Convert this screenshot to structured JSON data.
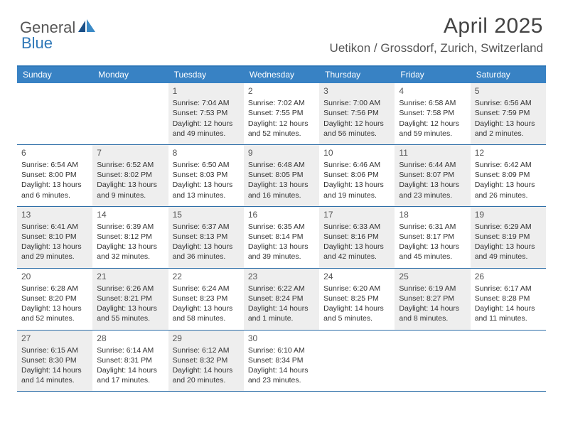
{
  "logo": {
    "text1": "General",
    "text2": "Blue"
  },
  "title": "April 2025",
  "location": "Uetikon / Grossdorf, Zurich, Switzerland",
  "colors": {
    "header_bg": "#3882c4",
    "border": "#2f6fa8",
    "shade": "#eeeeee",
    "logo_gray": "#565656",
    "logo_blue": "#2f78b8"
  },
  "day_headers": [
    "Sunday",
    "Monday",
    "Tuesday",
    "Wednesday",
    "Thursday",
    "Friday",
    "Saturday"
  ],
  "weeks": [
    [
      {
        "num": "",
        "sunrise": "",
        "sunset": "",
        "daylight": "",
        "shaded": false
      },
      {
        "num": "",
        "sunrise": "",
        "sunset": "",
        "daylight": "",
        "shaded": false
      },
      {
        "num": "1",
        "sunrise": "Sunrise: 7:04 AM",
        "sunset": "Sunset: 7:53 PM",
        "daylight": "Daylight: 12 hours and 49 minutes.",
        "shaded": true
      },
      {
        "num": "2",
        "sunrise": "Sunrise: 7:02 AM",
        "sunset": "Sunset: 7:55 PM",
        "daylight": "Daylight: 12 hours and 52 minutes.",
        "shaded": false
      },
      {
        "num": "3",
        "sunrise": "Sunrise: 7:00 AM",
        "sunset": "Sunset: 7:56 PM",
        "daylight": "Daylight: 12 hours and 56 minutes.",
        "shaded": true
      },
      {
        "num": "4",
        "sunrise": "Sunrise: 6:58 AM",
        "sunset": "Sunset: 7:58 PM",
        "daylight": "Daylight: 12 hours and 59 minutes.",
        "shaded": false
      },
      {
        "num": "5",
        "sunrise": "Sunrise: 6:56 AM",
        "sunset": "Sunset: 7:59 PM",
        "daylight": "Daylight: 13 hours and 2 minutes.",
        "shaded": true
      }
    ],
    [
      {
        "num": "6",
        "sunrise": "Sunrise: 6:54 AM",
        "sunset": "Sunset: 8:00 PM",
        "daylight": "Daylight: 13 hours and 6 minutes.",
        "shaded": false
      },
      {
        "num": "7",
        "sunrise": "Sunrise: 6:52 AM",
        "sunset": "Sunset: 8:02 PM",
        "daylight": "Daylight: 13 hours and 9 minutes.",
        "shaded": true
      },
      {
        "num": "8",
        "sunrise": "Sunrise: 6:50 AM",
        "sunset": "Sunset: 8:03 PM",
        "daylight": "Daylight: 13 hours and 13 minutes.",
        "shaded": false
      },
      {
        "num": "9",
        "sunrise": "Sunrise: 6:48 AM",
        "sunset": "Sunset: 8:05 PM",
        "daylight": "Daylight: 13 hours and 16 minutes.",
        "shaded": true
      },
      {
        "num": "10",
        "sunrise": "Sunrise: 6:46 AM",
        "sunset": "Sunset: 8:06 PM",
        "daylight": "Daylight: 13 hours and 19 minutes.",
        "shaded": false
      },
      {
        "num": "11",
        "sunrise": "Sunrise: 6:44 AM",
        "sunset": "Sunset: 8:07 PM",
        "daylight": "Daylight: 13 hours and 23 minutes.",
        "shaded": true
      },
      {
        "num": "12",
        "sunrise": "Sunrise: 6:42 AM",
        "sunset": "Sunset: 8:09 PM",
        "daylight": "Daylight: 13 hours and 26 minutes.",
        "shaded": false
      }
    ],
    [
      {
        "num": "13",
        "sunrise": "Sunrise: 6:41 AM",
        "sunset": "Sunset: 8:10 PM",
        "daylight": "Daylight: 13 hours and 29 minutes.",
        "shaded": true
      },
      {
        "num": "14",
        "sunrise": "Sunrise: 6:39 AM",
        "sunset": "Sunset: 8:12 PM",
        "daylight": "Daylight: 13 hours and 32 minutes.",
        "shaded": false
      },
      {
        "num": "15",
        "sunrise": "Sunrise: 6:37 AM",
        "sunset": "Sunset: 8:13 PM",
        "daylight": "Daylight: 13 hours and 36 minutes.",
        "shaded": true
      },
      {
        "num": "16",
        "sunrise": "Sunrise: 6:35 AM",
        "sunset": "Sunset: 8:14 PM",
        "daylight": "Daylight: 13 hours and 39 minutes.",
        "shaded": false
      },
      {
        "num": "17",
        "sunrise": "Sunrise: 6:33 AM",
        "sunset": "Sunset: 8:16 PM",
        "daylight": "Daylight: 13 hours and 42 minutes.",
        "shaded": true
      },
      {
        "num": "18",
        "sunrise": "Sunrise: 6:31 AM",
        "sunset": "Sunset: 8:17 PM",
        "daylight": "Daylight: 13 hours and 45 minutes.",
        "shaded": false
      },
      {
        "num": "19",
        "sunrise": "Sunrise: 6:29 AM",
        "sunset": "Sunset: 8:19 PM",
        "daylight": "Daylight: 13 hours and 49 minutes.",
        "shaded": true
      }
    ],
    [
      {
        "num": "20",
        "sunrise": "Sunrise: 6:28 AM",
        "sunset": "Sunset: 8:20 PM",
        "daylight": "Daylight: 13 hours and 52 minutes.",
        "shaded": false
      },
      {
        "num": "21",
        "sunrise": "Sunrise: 6:26 AM",
        "sunset": "Sunset: 8:21 PM",
        "daylight": "Daylight: 13 hours and 55 minutes.",
        "shaded": true
      },
      {
        "num": "22",
        "sunrise": "Sunrise: 6:24 AM",
        "sunset": "Sunset: 8:23 PM",
        "daylight": "Daylight: 13 hours and 58 minutes.",
        "shaded": false
      },
      {
        "num": "23",
        "sunrise": "Sunrise: 6:22 AM",
        "sunset": "Sunset: 8:24 PM",
        "daylight": "Daylight: 14 hours and 1 minute.",
        "shaded": true
      },
      {
        "num": "24",
        "sunrise": "Sunrise: 6:20 AM",
        "sunset": "Sunset: 8:25 PM",
        "daylight": "Daylight: 14 hours and 5 minutes.",
        "shaded": false
      },
      {
        "num": "25",
        "sunrise": "Sunrise: 6:19 AM",
        "sunset": "Sunset: 8:27 PM",
        "daylight": "Daylight: 14 hours and 8 minutes.",
        "shaded": true
      },
      {
        "num": "26",
        "sunrise": "Sunrise: 6:17 AM",
        "sunset": "Sunset: 8:28 PM",
        "daylight": "Daylight: 14 hours and 11 minutes.",
        "shaded": false
      }
    ],
    [
      {
        "num": "27",
        "sunrise": "Sunrise: 6:15 AM",
        "sunset": "Sunset: 8:30 PM",
        "daylight": "Daylight: 14 hours and 14 minutes.",
        "shaded": true
      },
      {
        "num": "28",
        "sunrise": "Sunrise: 6:14 AM",
        "sunset": "Sunset: 8:31 PM",
        "daylight": "Daylight: 14 hours and 17 minutes.",
        "shaded": false
      },
      {
        "num": "29",
        "sunrise": "Sunrise: 6:12 AM",
        "sunset": "Sunset: 8:32 PM",
        "daylight": "Daylight: 14 hours and 20 minutes.",
        "shaded": true
      },
      {
        "num": "30",
        "sunrise": "Sunrise: 6:10 AM",
        "sunset": "Sunset: 8:34 PM",
        "daylight": "Daylight: 14 hours and 23 minutes.",
        "shaded": false
      },
      {
        "num": "",
        "sunrise": "",
        "sunset": "",
        "daylight": "",
        "shaded": false
      },
      {
        "num": "",
        "sunrise": "",
        "sunset": "",
        "daylight": "",
        "shaded": false
      },
      {
        "num": "",
        "sunrise": "",
        "sunset": "",
        "daylight": "",
        "shaded": false
      }
    ]
  ]
}
